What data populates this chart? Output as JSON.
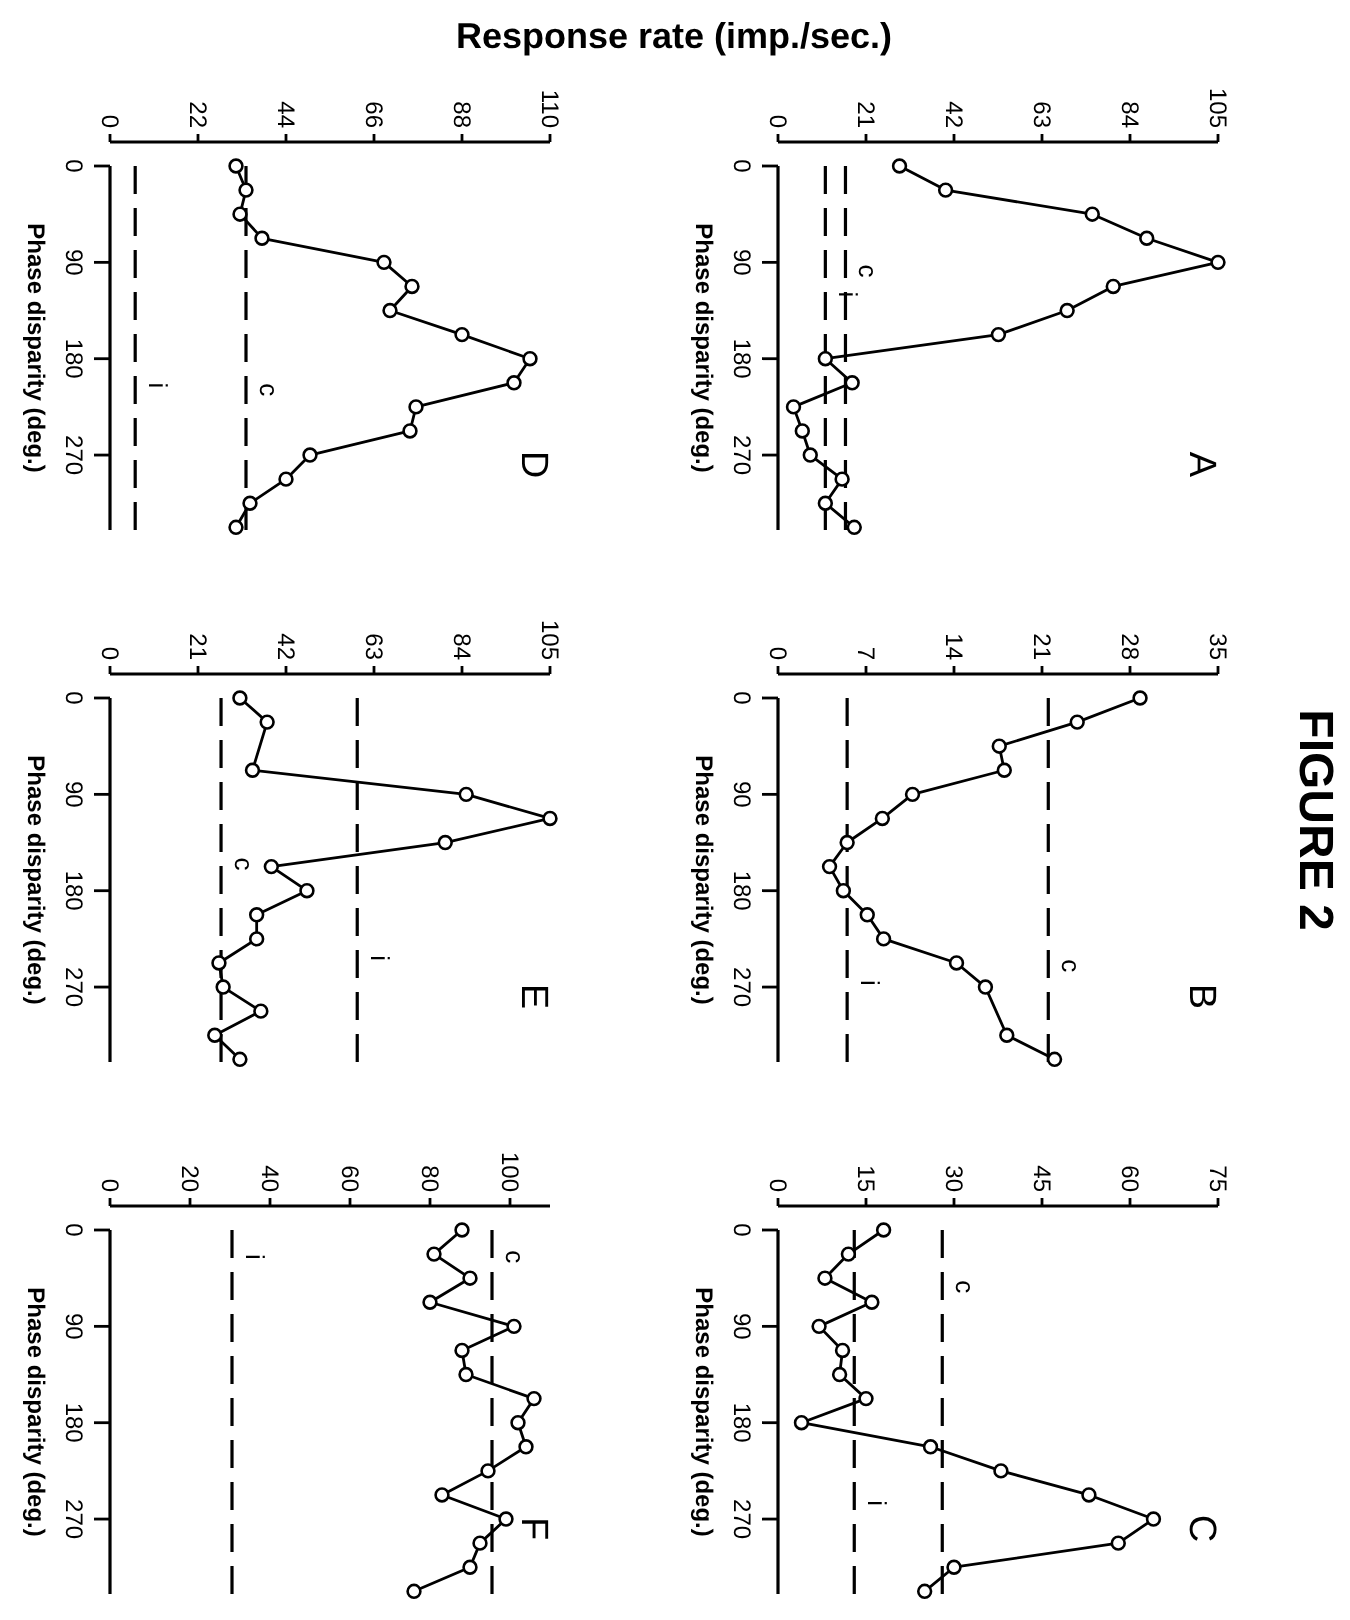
{
  "chart_data": [
    {
      "type": "line",
      "title": "A",
      "xlabel": "Response rate (imp./sec.)",
      "ylabel": "Phase disparity (deg.)",
      "xlim": [
        0,
        105
      ],
      "xticks": [
        0,
        21,
        42,
        63,
        84,
        105
      ],
      "ylim": [
        340,
        0
      ],
      "yticks": [
        0,
        90,
        180,
        270
      ],
      "marker": "circle",
      "series": [
        {
          "color": "#000000",
          "x": [
            29,
            40,
            75,
            88,
            105,
            80,
            69,
            52.6,
            11.3,
            17.7,
            3.7,
            5.8,
            7.7,
            15.3,
            11.3,
            18.2
          ],
          "values": [
            0,
            22.5,
            45,
            67.5,
            90,
            112.5,
            135,
            157.5,
            180,
            202.5,
            225,
            247.5,
            270,
            292.5,
            315,
            337.5
          ]
        }
      ],
      "ref_lines": [
        {
          "axis": "x",
          "value": 16.1,
          "line_style": "dashed"
        },
        {
          "axis": "x",
          "value": 11.3,
          "line_style": "dashed"
        }
      ],
      "annotations": [
        "FIGURE 2",
        {
          "text": "c",
          "x": 16.1,
          "y": 98
        },
        {
          "text": "i",
          "x": 11.3,
          "y": 120
        }
      ]
    },
    {
      "type": "line",
      "title": "B",
      "ylabel": "Phase disparity (deg.)",
      "xlim": [
        0,
        35
      ],
      "xticks": [
        0,
        7,
        14,
        21,
        28,
        35
      ],
      "ylim": [
        340,
        0
      ],
      "yticks": [
        0,
        90,
        180,
        270
      ],
      "marker": "circle",
      "series": [
        {
          "color": "#000000",
          "x": [
            28.8,
            23.8,
            17.6,
            18,
            10.7,
            8.3,
            5.5,
            4.1,
            5.2,
            7.1,
            8.4,
            14.2,
            16.5,
            18.2,
            22
          ],
          "values": [
            0,
            22.5,
            45,
            67.5,
            90,
            112.5,
            135,
            157.5,
            180,
            202.5,
            225,
            247.5,
            270,
            315,
            337.5
          ]
        }
      ],
      "ref_lines": [
        {
          "axis": "x",
          "value": 21.5,
          "line_style": "dashed"
        },
        {
          "axis": "x",
          "value": 5.5,
          "line_style": "dashed"
        }
      ],
      "annotations": [
        {
          "text": "c",
          "x": 21.5,
          "y": 250
        },
        {
          "text": "i",
          "x": 5.5,
          "y": 266
        }
      ]
    },
    {
      "type": "line",
      "title": "C",
      "ylabel": "Phase disparity (deg.)",
      "xlim": [
        0,
        75
      ],
      "xticks": [
        0,
        15,
        30,
        45,
        60,
        75
      ],
      "ylim": [
        340,
        0
      ],
      "yticks": [
        0,
        90,
        180,
        270
      ],
      "marker": "circle",
      "series": [
        {
          "color": "#000000",
          "x": [
            18,
            12,
            8,
            16,
            7,
            11,
            10.5,
            15,
            4,
            26,
            38,
            53,
            64,
            58,
            30,
            25
          ],
          "values": [
            0,
            22.5,
            45,
            67.5,
            90,
            112.5,
            135,
            157.5,
            180,
            202.5,
            225,
            247.5,
            270,
            292.5,
            315,
            337.5
          ]
        }
      ],
      "ref_lines": [
        {
          "axis": "x",
          "value": 28,
          "line_style": "dashed"
        },
        {
          "axis": "x",
          "value": 13,
          "line_style": "dashed"
        }
      ],
      "annotations": [
        {
          "text": "c",
          "x": 28,
          "y": 53
        },
        {
          "text": "i",
          "x": 13,
          "y": 255
        }
      ]
    },
    {
      "type": "line",
      "title": "D",
      "ylabel": "Phase disparity (deg.)",
      "xlim": [
        0,
        110
      ],
      "xticks": [
        0,
        22,
        44,
        66,
        88,
        110
      ],
      "ylim": [
        340,
        0
      ],
      "yticks": [
        0,
        90,
        180,
        270
      ],
      "marker": "circle",
      "series": [
        {
          "color": "#000000",
          "x": [
            31.5,
            34,
            32.5,
            38,
            68.5,
            75.5,
            70,
            88,
            105,
            101,
            76.5,
            75,
            50,
            44,
            35,
            31.5
          ],
          "values": [
            0,
            22.5,
            45,
            67.5,
            90,
            112.5,
            135,
            157.5,
            180,
            202.5,
            225,
            247.5,
            270,
            292.5,
            315,
            337.5
          ]
        }
      ],
      "ref_lines": [
        {
          "axis": "x",
          "value": 34,
          "line_style": "dashed"
        },
        {
          "axis": "x",
          "value": 6.3,
          "line_style": "dashed"
        }
      ],
      "annotations": [
        {
          "text": "c",
          "x": 34,
          "y": 209
        },
        {
          "text": "i",
          "x": 6.3,
          "y": 205
        }
      ]
    },
    {
      "type": "line",
      "title": "E",
      "ylabel": "Phase disparity (deg.)",
      "xlim": [
        0,
        105
      ],
      "xticks": [
        0,
        21,
        42,
        63,
        84,
        105
      ],
      "ylim": [
        340,
        0
      ],
      "yticks": [
        0,
        90,
        180,
        270
      ],
      "marker": "circle",
      "series": [
        {
          "color": "#000000",
          "x": [
            31,
            37.5,
            34,
            85,
            105,
            80,
            38.5,
            47,
            35,
            35,
            26,
            27,
            36,
            25,
            31
          ],
          "values": [
            0,
            22.5,
            67.5,
            90,
            112.5,
            135,
            157.5,
            180,
            202.5,
            225,
            247.5,
            270,
            292.5,
            315,
            337.5
          ]
        }
      ],
      "ref_lines": [
        {
          "axis": "x",
          "value": 26.5,
          "line_style": "dashed"
        },
        {
          "axis": "x",
          "value": 59,
          "line_style": "dashed"
        }
      ],
      "annotations": [
        {
          "text": "c",
          "x": 26.5,
          "y": 155
        },
        {
          "text": "i",
          "x": 59,
          "y": 243
        }
      ]
    },
    {
      "type": "line",
      "title": "F",
      "ylabel": "Phase disparity (deg.)",
      "xlim": [
        0,
        110
      ],
      "xticks": [
        0,
        20,
        40,
        60,
        80,
        100
      ],
      "ylim": [
        340,
        0
      ],
      "yticks": [
        0,
        90,
        180,
        270
      ],
      "marker": "circle",
      "series": [
        {
          "color": "#000000",
          "x": [
            88,
            81,
            90,
            80,
            101,
            88,
            89,
            106,
            102,
            104,
            94.5,
            83,
            99,
            92.5,
            90,
            76
          ],
          "values": [
            0,
            22.5,
            45,
            67.5,
            90,
            112.5,
            135,
            157.5,
            180,
            202.5,
            225,
            247.5,
            270,
            292.5,
            315,
            337.5
          ]
        }
      ],
      "ref_lines": [
        {
          "axis": "x",
          "value": 95.5,
          "line_style": "dashed"
        },
        {
          "axis": "x",
          "value": 30.5,
          "line_style": "dashed"
        }
      ],
      "annotations": [
        {
          "text": "c",
          "x": 95.5,
          "y": 25
        },
        {
          "text": "i",
          "x": 30.5,
          "y": 25
        }
      ]
    }
  ]
}
